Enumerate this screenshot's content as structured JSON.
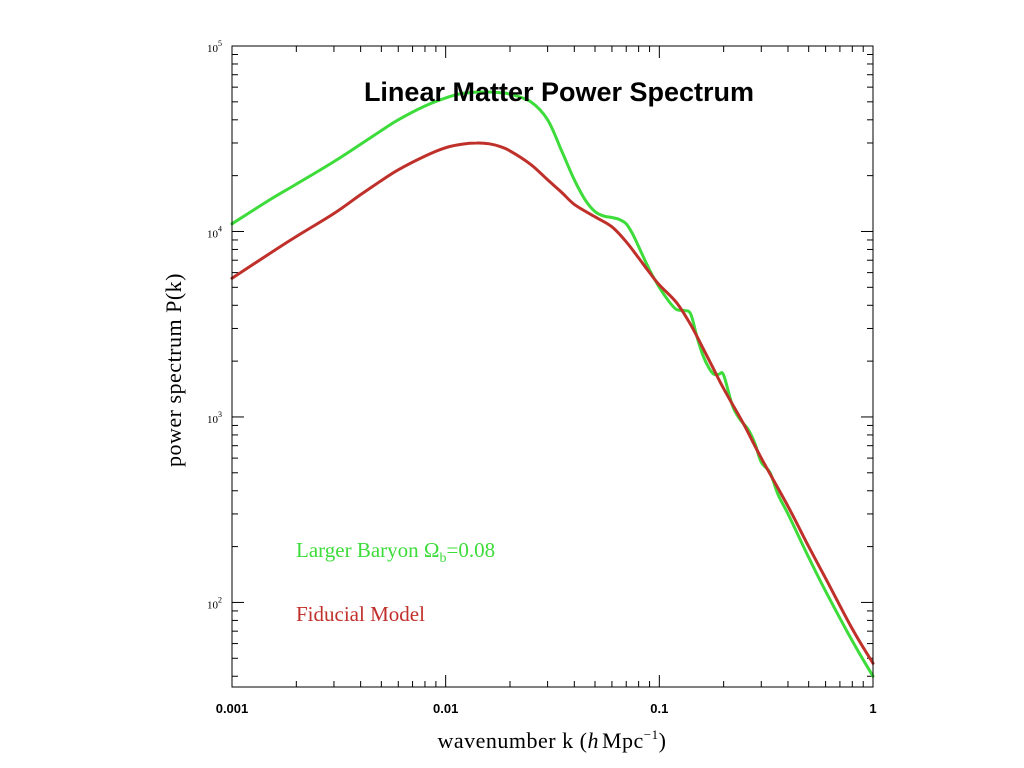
{
  "colors": {
    "background": "#ffffff",
    "axis": "#000000",
    "fiducial": "#c0302a",
    "larger_baryon": "#3ddc3a"
  },
  "chart_data": {
    "type": "line",
    "title": "Linear Matter Power Spectrum",
    "xlabel": "wavenumber k (h Mpc⁻¹)",
    "xlabel_parts": {
      "main": "wavenumber k (",
      "h": "h",
      "unit": "Mpc",
      "sup": "−1",
      "close": ")"
    },
    "ylabel": "power spectrum P(k)",
    "xscale": "log",
    "yscale": "log",
    "xlim": [
      0.001,
      1
    ],
    "ylim": [
      35,
      100000
    ],
    "x_ticks": [
      {
        "value": 0.001,
        "label": "0.001"
      },
      {
        "value": 0.01,
        "label": "0.01"
      },
      {
        "value": 0.1,
        "label": "0.1"
      },
      {
        "value": 1,
        "label": "1"
      }
    ],
    "y_ticks": [
      {
        "value": 100,
        "base": "10",
        "exp": "2"
      },
      {
        "value": 1000,
        "base": "10",
        "exp": "3"
      },
      {
        "value": 10000,
        "base": "10",
        "exp": "4"
      },
      {
        "value": 100000,
        "base": "10",
        "exp": "5"
      }
    ],
    "legend": [
      {
        "series": "larger_baryon",
        "text": "Larger Baryon Ω",
        "sub": "b",
        "suffix": "=0.08"
      },
      {
        "series": "fiducial",
        "text": "Fiducial Model",
        "sub": "",
        "suffix": ""
      }
    ],
    "legend_placement": "bottom-left",
    "grid": false,
    "series": [
      {
        "key": "larger_baryon",
        "name": "Larger Baryon Ωb=0.08",
        "color": "#3ddc3a",
        "x": [
          0.001,
          0.0015,
          0.002,
          0.003,
          0.004,
          0.005,
          0.006,
          0.008,
          0.01,
          0.012,
          0.015,
          0.018,
          0.02,
          0.025,
          0.03,
          0.035,
          0.04,
          0.045,
          0.05,
          0.055,
          0.06,
          0.065,
          0.07,
          0.075,
          0.08,
          0.09,
          0.1,
          0.11,
          0.12,
          0.13,
          0.14,
          0.15,
          0.16,
          0.17,
          0.18,
          0.19,
          0.2,
          0.22,
          0.24,
          0.26,
          0.28,
          0.3,
          0.33,
          0.36,
          0.4,
          0.5,
          0.6,
          0.8,
          1.0
        ],
        "y": [
          11000,
          14800,
          18000,
          23800,
          29500,
          35000,
          40000,
          47500,
          52500,
          55500,
          56500,
          56000,
          55000,
          50000,
          40000,
          27000,
          19000,
          14800,
          12800,
          12100,
          11900,
          11600,
          11000,
          9700,
          8300,
          6200,
          5000,
          4250,
          3800,
          3750,
          3600,
          2700,
          2150,
          1850,
          1700,
          1700,
          1680,
          1150,
          960,
          860,
          720,
          570,
          500,
          380,
          300,
          175,
          115,
          62,
          40
        ]
      },
      {
        "key": "fiducial",
        "name": "Fiducial Model",
        "color": "#c0302a",
        "x": [
          0.001,
          0.0015,
          0.002,
          0.003,
          0.004,
          0.005,
          0.006,
          0.008,
          0.01,
          0.012,
          0.014,
          0.016,
          0.018,
          0.02,
          0.025,
          0.03,
          0.035,
          0.04,
          0.05,
          0.06,
          0.07,
          0.08,
          0.09,
          0.1,
          0.12,
          0.14,
          0.16,
          0.18,
          0.2,
          0.25,
          0.3,
          0.4,
          0.5,
          0.6,
          0.8,
          1.0
        ],
        "y": [
          5600,
          7600,
          9400,
          12500,
          15800,
          18800,
          21500,
          25500,
          28300,
          29600,
          30000,
          29700,
          28700,
          27200,
          23000,
          19000,
          16200,
          14000,
          12000,
          10600,
          8800,
          7200,
          6000,
          5150,
          4150,
          3150,
          2350,
          1800,
          1420,
          900,
          600,
          330,
          200,
          135,
          72,
          47
        ]
      }
    ]
  }
}
